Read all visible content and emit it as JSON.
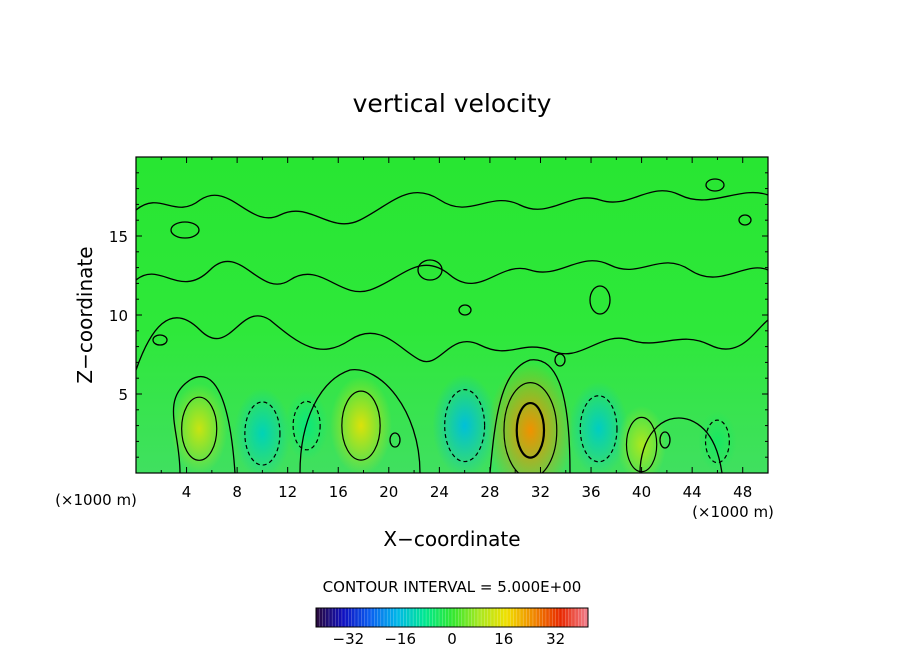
{
  "chart_data": {
    "type": "heatmap",
    "title": "vertical velocity",
    "xlabel": "X−coordinate",
    "ylabel": "Z−coordinate",
    "x_unit_left": "(×1000 m)",
    "x_unit_right": "(×1000 m)",
    "xlim": [
      0,
      50
    ],
    "ylim": [
      0,
      20
    ],
    "x_ticks": [
      4,
      8,
      12,
      16,
      20,
      24,
      28,
      32,
      36,
      40,
      44,
      48
    ],
    "x_tick_labels": [
      "4",
      "8",
      "12",
      "16",
      "20",
      "24",
      "28",
      "32",
      "36",
      "40",
      "44",
      "48"
    ],
    "y_ticks": [
      5,
      10,
      15
    ],
    "y_tick_labels": [
      "5",
      "10",
      "15"
    ],
    "grid": false,
    "contour_interval_label": "CONTOUR INTERVAL = 5.000E+00",
    "colorbar": {
      "range": [
        -42,
        42
      ],
      "ticks": [
        -32,
        -16,
        0,
        16,
        32
      ],
      "tick_labels": [
        "−32",
        "−16",
        "0",
        "16",
        "32"
      ],
      "colors": [
        "#2a0a3a",
        "#1010c0",
        "#0a60f0",
        "#00b8e8",
        "#00e890",
        "#30e830",
        "#a8e820",
        "#f0e000",
        "#f08800",
        "#e82800",
        "#f08090"
      ]
    },
    "features": [
      {
        "x": 5.0,
        "z": 2.8,
        "w": 5.5,
        "kind": "updraft"
      },
      {
        "x": 10.0,
        "z": 2.5,
        "w": -5.5,
        "kind": "downdraft"
      },
      {
        "x": 13.5,
        "z": 3.0,
        "w": -3.0,
        "kind": "downdraft"
      },
      {
        "x": 17.8,
        "z": 3.0,
        "w": 6.5,
        "kind": "updraft"
      },
      {
        "x": 26.0,
        "z": 3.0,
        "w": -7.0,
        "kind": "downdraft"
      },
      {
        "x": 31.2,
        "z": 2.7,
        "w": 11.0,
        "kind": "updraft"
      },
      {
        "x": 36.6,
        "z": 2.8,
        "w": -6.0,
        "kind": "downdraft"
      },
      {
        "x": 40.0,
        "z": 1.8,
        "w": 4.0,
        "kind": "updraft"
      },
      {
        "x": 46.0,
        "z": 2.0,
        "w": -2.0,
        "kind": "downdraft"
      }
    ]
  }
}
